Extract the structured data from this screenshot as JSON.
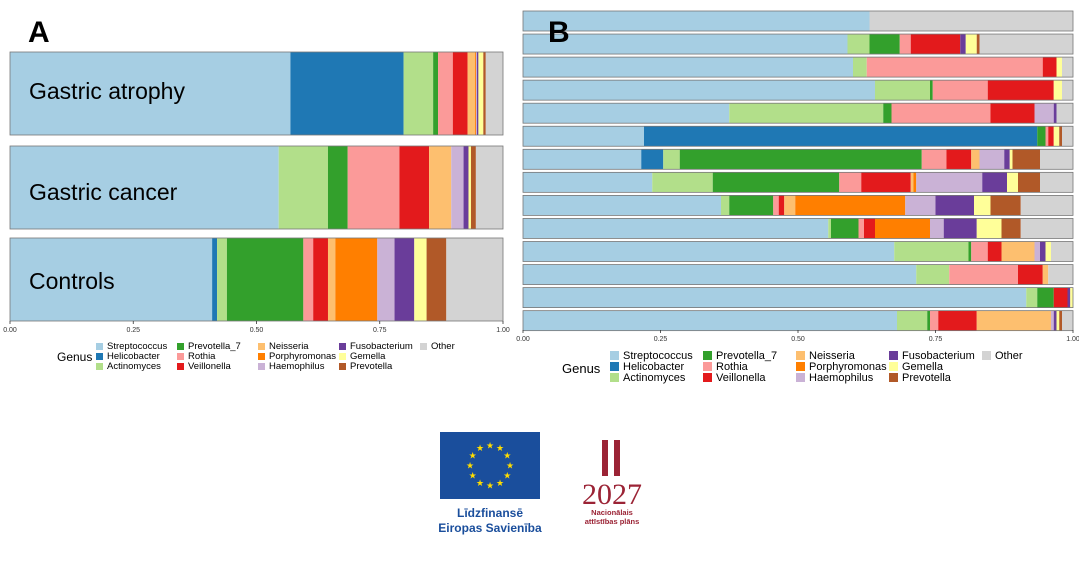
{
  "genera": [
    {
      "name": "Streptococcus",
      "color": "#a6cee3"
    },
    {
      "name": "Helicobacter",
      "color": "#1f78b4"
    },
    {
      "name": "Actinomyces",
      "color": "#b2df8a"
    },
    {
      "name": "Prevotella_7",
      "color": "#33a02c"
    },
    {
      "name": "Rothia",
      "color": "#fb9a99"
    },
    {
      "name": "Veillonella",
      "color": "#e31a1c"
    },
    {
      "name": "Neisseria",
      "color": "#fdbf6f"
    },
    {
      "name": "Porphyromonas",
      "color": "#ff7f00"
    },
    {
      "name": "Haemophilus",
      "color": "#cab2d6"
    },
    {
      "name": "Fusobacterium",
      "color": "#6a3d9a"
    },
    {
      "name": "Gemella",
      "color": "#ffff99"
    },
    {
      "name": "Prevotella",
      "color": "#b15928"
    },
    {
      "name": "Other",
      "color": "#d3d3d3"
    }
  ],
  "chart_data": [
    {
      "type": "bar",
      "orientation": "horizontal",
      "stacked": true,
      "panel": "A",
      "categories": [
        "Gastric atrophy",
        "Gastric cancer",
        "Controls"
      ],
      "series_order": [
        "Streptococcus",
        "Helicobacter",
        "Actinomyces",
        "Prevotella_7",
        "Rothia",
        "Veillonella",
        "Neisseria",
        "Porphyromonas",
        "Haemophilus",
        "Fusobacterium",
        "Gemella",
        "Prevotella",
        "Other"
      ],
      "values": [
        [
          0.57,
          0.23,
          0.06,
          0.01,
          0.03,
          0.03,
          0.015,
          0.002,
          0.002,
          0.003,
          0.01,
          0.005,
          0.035
        ],
        [
          0.545,
          0,
          0.1,
          0.04,
          0.105,
          0.06,
          0.045,
          0,
          0.025,
          0.01,
          0.005,
          0.01,
          0.055
        ],
        [
          0.41,
          0.01,
          0.02,
          0.155,
          0.02,
          0.03,
          0.015,
          0.085,
          0.035,
          0.04,
          0.025,
          0.04,
          0.115
        ]
      ],
      "xlim": [
        0,
        1
      ],
      "xticks": [
        "0.00",
        "0.25",
        "0.50",
        "0.75",
        "1.00"
      ],
      "legend_title": "Genus",
      "legend_position": "bottom"
    },
    {
      "type": "bar",
      "orientation": "horizontal",
      "stacked": true,
      "panel": "B",
      "series_order": [
        "Streptococcus",
        "Helicobacter",
        "Actinomyces",
        "Prevotella_7",
        "Rothia",
        "Veillonella",
        "Neisseria",
        "Porphyromonas",
        "Haemophilus",
        "Fusobacterium",
        "Gemella",
        "Prevotella",
        "Other"
      ],
      "values": [
        [
          0.63,
          0,
          0,
          0,
          0,
          0,
          0,
          0,
          0,
          0,
          0,
          0,
          0.37
        ],
        [
          0.59,
          0,
          0.04,
          0.055,
          0.02,
          0.09,
          0,
          0,
          0,
          0.01,
          0.02,
          0.005,
          0.17
        ],
        [
          0.6,
          0,
          0.025,
          0,
          0.32,
          0.025,
          0,
          0,
          0,
          0,
          0.01,
          0,
          0.02
        ],
        [
          0.64,
          0,
          0.1,
          0.005,
          0.1,
          0.12,
          0,
          0,
          0,
          0,
          0.015,
          0,
          0.02
        ],
        [
          0.375,
          0,
          0.28,
          0.015,
          0.18,
          0.08,
          0,
          0,
          0.035,
          0.005,
          0,
          0,
          0.03
        ],
        [
          0.22,
          0.715,
          0,
          0.015,
          0.005,
          0.01,
          0,
          0,
          0,
          0,
          0.01,
          0.005,
          0.02
        ],
        [
          0.215,
          0.04,
          0.03,
          0.44,
          0.045,
          0.045,
          0.015,
          0,
          0.045,
          0.01,
          0.005,
          0.05,
          0.06
        ],
        [
          0.235,
          0,
          0.11,
          0.23,
          0.04,
          0.09,
          0.005,
          0.005,
          0.12,
          0.045,
          0.02,
          0.04,
          0.06
        ],
        [
          0.36,
          0,
          0.015,
          0.08,
          0.01,
          0.01,
          0.02,
          0.2,
          0.055,
          0.07,
          0.03,
          0.055,
          0.095
        ],
        [
          0.555,
          0,
          0.005,
          0.05,
          0.01,
          0.02,
          0,
          0.1,
          0.025,
          0.06,
          0.045,
          0.035,
          0.095
        ],
        [
          0.675,
          0,
          0.135,
          0.005,
          0.03,
          0.025,
          0.06,
          0,
          0.01,
          0.01,
          0.01,
          0,
          0.04
        ],
        [
          0.715,
          0,
          0.06,
          0,
          0.125,
          0.045,
          0.01,
          0,
          0,
          0,
          0,
          0,
          0.045
        ],
        [
          0.915,
          0,
          0.02,
          0.03,
          0,
          0.025,
          0,
          0,
          0,
          0.005,
          0.005,
          0,
          0
        ],
        [
          0.68,
          0,
          0.055,
          0.005,
          0.015,
          0.07,
          0.135,
          0,
          0.005,
          0.005,
          0.005,
          0.005,
          0.02
        ]
      ],
      "xlim": [
        0,
        1
      ],
      "xticks": [
        "0.00",
        "0.25",
        "0.50",
        "0.75",
        "1.00"
      ],
      "legend_title": "Genus",
      "legend_position": "bottom"
    }
  ],
  "panels": {
    "A": {
      "letter": "A"
    },
    "B": {
      "letter": "B"
    }
  },
  "logos": {
    "eu": {
      "line1": "Līdzfinansē",
      "line2": "Eiropas Savienība",
      "icon": "eu-flag-icon"
    },
    "lv": {
      "year": "2027",
      "line1": "Nacionālais",
      "line2": "attīstības plāns",
      "icon": "lv-nap-logo-icon"
    }
  }
}
